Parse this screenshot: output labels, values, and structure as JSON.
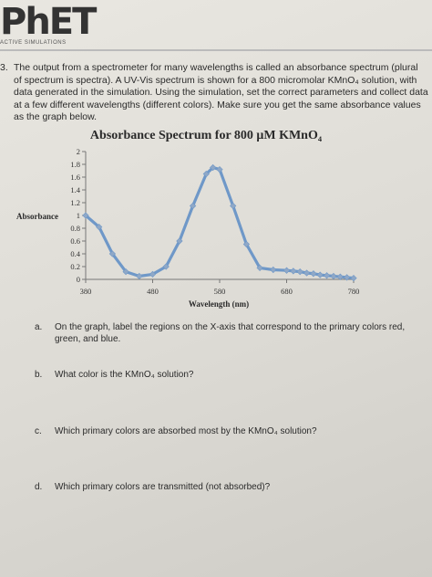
{
  "header": {
    "logo_text": "PhET",
    "logo_subtitle": "ACTIVE SIMULATIONS"
  },
  "question": {
    "number": "3.",
    "text": "The output from a spectrometer for many wavelengths is called an absorbance spectrum (plural of spectrum is spectra). A UV-Vis spectrum is shown for a 800 micromolar KMnO₄ solution, with data generated in the simulation. Using the simulation, set the correct parameters and collect data at a few different wavelengths (different colors). Make sure you get the same absorbance values as the graph below."
  },
  "chart_data": {
    "type": "line",
    "title": "Absorbance Spectrum for 800 μM KMnO₄",
    "xlabel": "Wavelength (nm)",
    "ylabel": "Absorbance",
    "xlim": [
      380,
      780
    ],
    "ylim": [
      0,
      2
    ],
    "x_ticks": [
      380,
      480,
      580,
      680,
      780
    ],
    "y_ticks": [
      "0",
      "0.2",
      "0.4",
      "0.6",
      "0.8",
      "1",
      "1.2",
      "1.4",
      "1.6",
      "1.8",
      "2"
    ],
    "grid": false,
    "series": [
      {
        "color": "#6f98c8",
        "marker_color": "#8fa8c7",
        "x": [
          380,
          400,
          420,
          440,
          460,
          480,
          500,
          520,
          540,
          560,
          570,
          580,
          600,
          620,
          640,
          660,
          680,
          690,
          700,
          710,
          720,
          730,
          740,
          750,
          760,
          770,
          780
        ],
        "y": [
          1.0,
          0.82,
          0.4,
          0.12,
          0.05,
          0.08,
          0.2,
          0.6,
          1.15,
          1.65,
          1.75,
          1.72,
          1.15,
          0.55,
          0.18,
          0.15,
          0.14,
          0.13,
          0.12,
          0.1,
          0.09,
          0.07,
          0.06,
          0.05,
          0.04,
          0.03,
          0.02
        ]
      }
    ]
  },
  "questions": [
    {
      "letter": "a.",
      "text": "On the graph, label the regions on the X-axis that correspond to the primary colors red, green, and blue."
    },
    {
      "letter": "b.",
      "text": "What color is the KMnO₄ solution?"
    },
    {
      "letter": "c.",
      "text": "Which primary colors are absorbed most by the KMnO₄ solution?"
    },
    {
      "letter": "d.",
      "text": "Which primary colors are transmitted (not absorbed)?"
    }
  ]
}
